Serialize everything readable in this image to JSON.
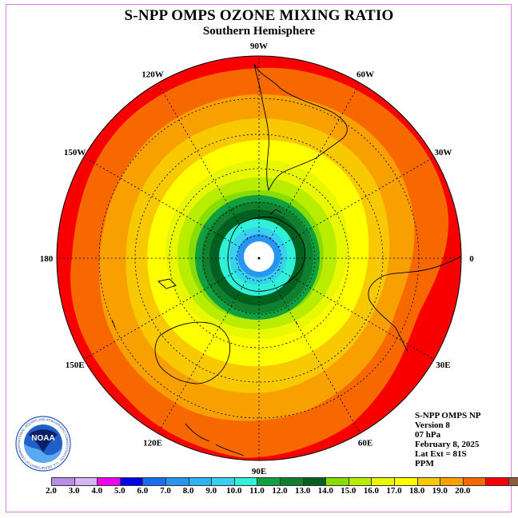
{
  "title": "S-NPP OMPS OZONE MIXING RATIO",
  "subtitle": "Southern Hemisphere",
  "longitude_labels": [
    {
      "text": "90W",
      "deg": -90
    },
    {
      "text": "60W",
      "deg": -60
    },
    {
      "text": "30W",
      "deg": -30
    },
    {
      "text": "0",
      "deg": 0
    },
    {
      "text": "30E",
      "deg": 30
    },
    {
      "text": "60E",
      "deg": 60
    },
    {
      "text": "90E",
      "deg": 90
    },
    {
      "text": "120E",
      "deg": 120
    },
    {
      "text": "150E",
      "deg": 150
    },
    {
      "text": "180",
      "deg": 180
    },
    {
      "text": "150W",
      "deg": -150
    },
    {
      "text": "120W",
      "deg": -120
    }
  ],
  "info": {
    "line1": "S-NPP OMPS NP",
    "line2": "Version 8",
    "line3": "07 hPa",
    "line4": "February 8, 2025",
    "line5": "Lat Ext = 81S",
    "line6": "PPM"
  },
  "logo": {
    "text": "NOAA",
    "ring_text": "NATIONAL OCEANIC AND ATMOSPHERIC ADMINISTRATION · U.S. DEPARTMENT OF COMMERCE"
  },
  "colorbar": {
    "colors": [
      "#b88ce8",
      "#d8b4f0",
      "#ee00ee",
      "#0000e8",
      "#1a6cf0",
      "#2896f0",
      "#30b4f0",
      "#38d0f0",
      "#30f0d8",
      "#10a040",
      "#108030",
      "#006020",
      "#88dc00",
      "#b8ec00",
      "#e8f800",
      "#ffff00",
      "#f8c800",
      "#f8a000",
      "#f86800",
      "#f80000",
      "#8c5c3c"
    ],
    "ticks": [
      "2.0",
      "3.0",
      "4.0",
      "5.0",
      "6.0",
      "7.0",
      "8.0",
      "9.0",
      "10.0",
      "11.0",
      "12.0",
      "13.0",
      "14.0",
      "15.0",
      "16.0",
      "17.0",
      "18.0",
      "19.0",
      "20.0"
    ]
  },
  "chart_data": {
    "type": "heatmap",
    "title": "S-NPP OMPS OZONE MIXING RATIO",
    "subtitle": "Southern Hemisphere",
    "projection": "south polar stereographic",
    "units": "PPM",
    "pressure_level": "07 hPa",
    "date": "February 8, 2025",
    "lat_extent": "81S",
    "contour_levels": [
      2.0,
      3.0,
      4.0,
      5.0,
      6.0,
      7.0,
      8.0,
      9.0,
      10.0,
      11.0,
      12.0,
      13.0,
      14.0,
      15.0,
      16.0,
      17.0,
      18.0,
      19.0,
      20.0
    ],
    "pattern": "concentric bands: ~7-9 near pole, 10-12 ring near 75S, rising to 18-19 at outer edge"
  }
}
